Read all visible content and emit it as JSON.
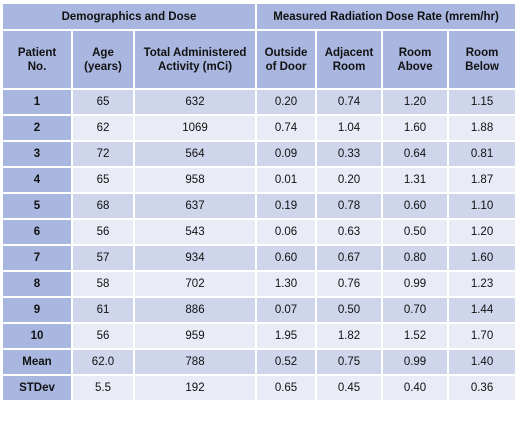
{
  "group_headers": [
    "Demographics and Dose",
    "Measured Radiation Dose Rate (mrem/hr)"
  ],
  "columns": [
    {
      "line1": "Patient",
      "line2": "No."
    },
    {
      "line1": "Age",
      "line2": "(years)"
    },
    {
      "line1": "Total Administered",
      "line2": "Activity (mCi)"
    },
    {
      "line1": "Outside",
      "line2": "of Door"
    },
    {
      "line1": "Adjacent",
      "line2": "Room"
    },
    {
      "line1": "Room",
      "line2": "Above"
    },
    {
      "line1": "Room",
      "line2": "Below"
    }
  ],
  "rows": [
    [
      "1",
      "65",
      "632",
      "0.20",
      "0.74",
      "1.20",
      "1.15"
    ],
    [
      "2",
      "62",
      "1069",
      "0.74",
      "1.04",
      "1.60",
      "1.88"
    ],
    [
      "3",
      "72",
      "564",
      "0.09",
      "0.33",
      "0.64",
      "0.81"
    ],
    [
      "4",
      "65",
      "958",
      "0.01",
      "0.20",
      "1.31",
      "1.87"
    ],
    [
      "5",
      "68",
      "637",
      "0.19",
      "0.78",
      "0.60",
      "1.10"
    ],
    [
      "6",
      "56",
      "543",
      "0.06",
      "0.63",
      "0.50",
      "1.20"
    ],
    [
      "7",
      "57",
      "934",
      "0.60",
      "0.67",
      "0.80",
      "1.60"
    ],
    [
      "8",
      "58",
      "702",
      "1.30",
      "0.76",
      "0.99",
      "1.23"
    ],
    [
      "9",
      "61",
      "886",
      "0.07",
      "0.50",
      "0.70",
      "1.44"
    ],
    [
      "10",
      "56",
      "959",
      "1.95",
      "1.82",
      "1.52",
      "1.70"
    ],
    [
      "Mean",
      "62.0",
      "788",
      "0.52",
      "0.75",
      "0.99",
      "1.40"
    ],
    [
      "STDev",
      "5.5",
      "192",
      "0.65",
      "0.45",
      "0.40",
      "0.36"
    ]
  ],
  "colors": {
    "header_bg": "#a9b7e0",
    "row_odd_bg": "#cfd5ea",
    "row_even_bg": "#e9ecf6"
  }
}
